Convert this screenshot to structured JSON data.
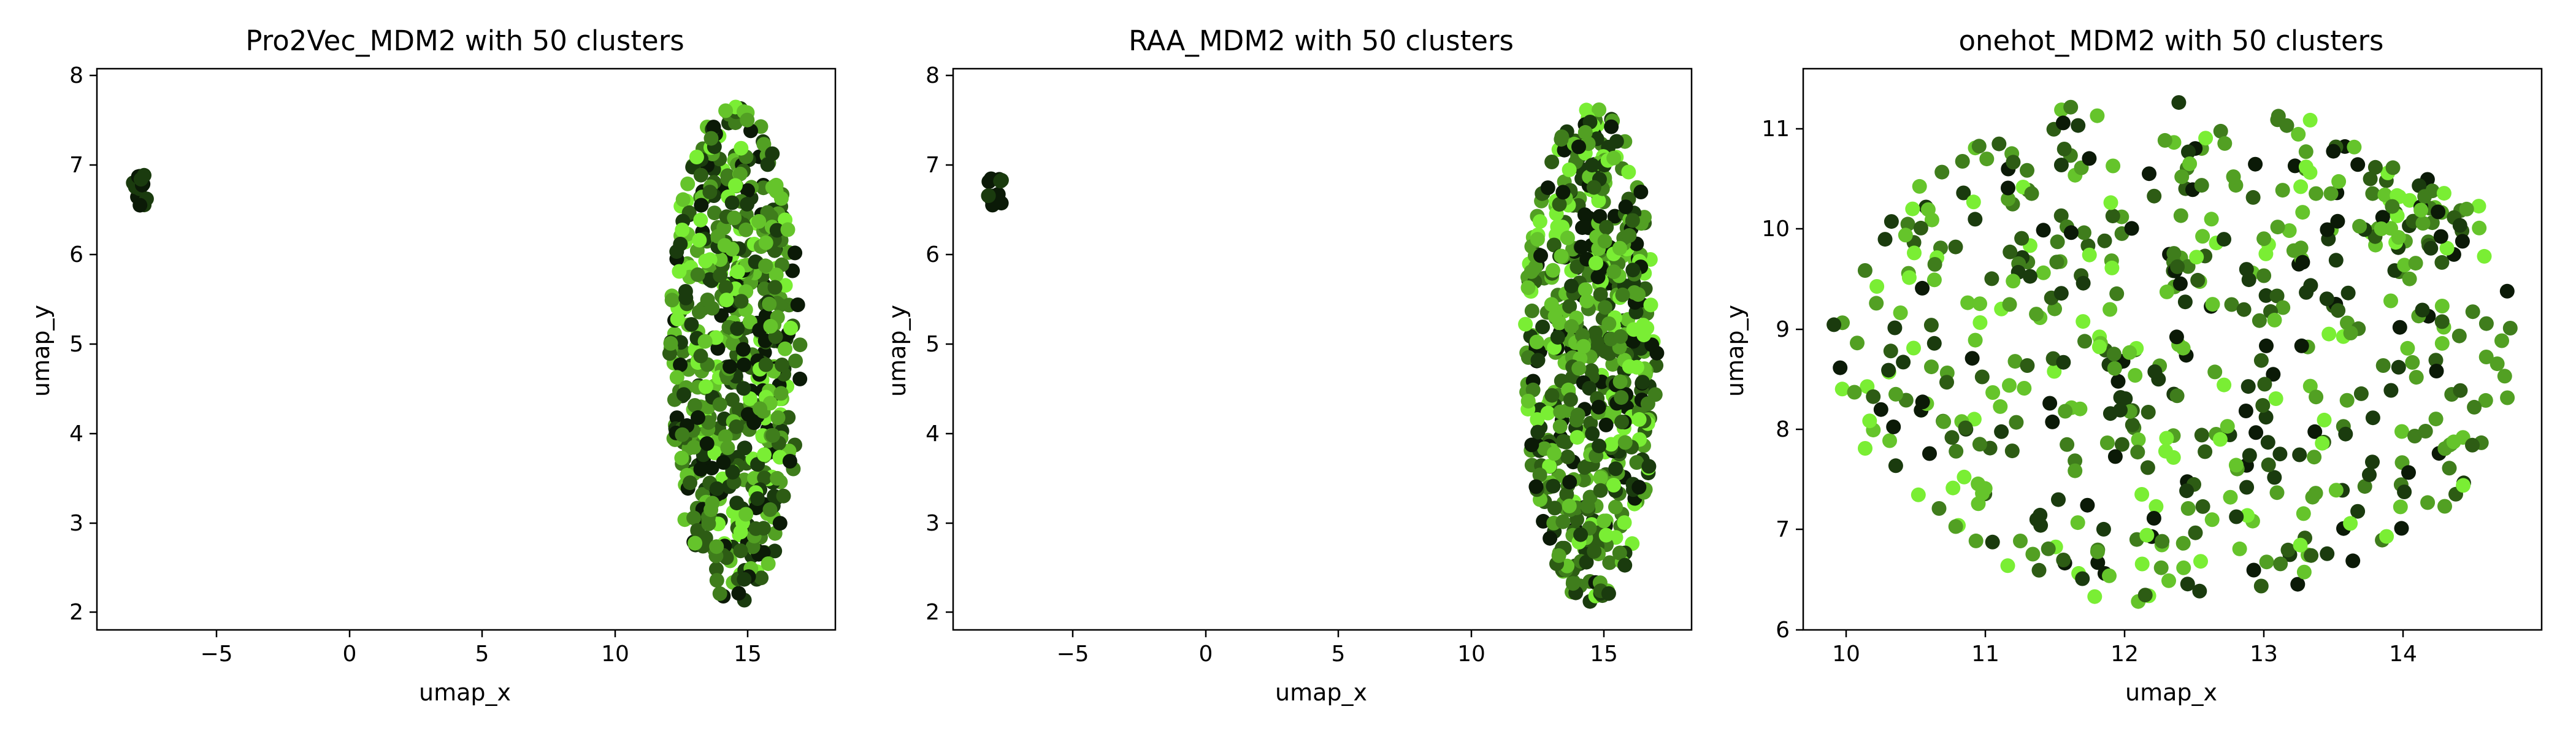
{
  "chart_data": [
    {
      "type": "scatter",
      "title": "Pro2Vec_MDM2 with 50 clusters",
      "xlabel": "umap_x",
      "ylabel": "umap_y",
      "xlim": [
        -9.5,
        18.3
      ],
      "ylim": [
        1.8,
        8.15
      ],
      "xticks": [
        -5,
        0,
        5,
        10,
        15
      ],
      "yticks": [
        2,
        3,
        4,
        5,
        6,
        7,
        8
      ],
      "grid": false,
      "legend": "none",
      "clusters": [
        {
          "x_range": [
            -8.2,
            -7.6
          ],
          "y_range": [
            6.55,
            7.0
          ],
          "count": 14
        },
        {
          "x_range": [
            12.0,
            17.0
          ],
          "y_range": [
            2.1,
            7.75
          ],
          "count": 600
        }
      ],
      "palette": [
        "#0b1a07",
        "#1a3b0e",
        "#2d5c14",
        "#3f7d1c",
        "#52a023",
        "#65c42b",
        "#7aee34"
      ]
    },
    {
      "type": "scatter",
      "title": "RAA_MDM2 with 50 clusters",
      "xlabel": "umap_x",
      "ylabel": "umap_y",
      "xlim": [
        -9.5,
        18.3
      ],
      "ylim": [
        1.8,
        8.15
      ],
      "xticks": [
        -5,
        0,
        5,
        10,
        15
      ],
      "yticks": [
        2,
        3,
        4,
        5,
        6,
        7,
        8
      ],
      "grid": false,
      "legend": "none",
      "clusters": [
        {
          "x_range": [
            -8.2,
            -7.6
          ],
          "y_range": [
            6.55,
            7.0
          ],
          "count": 14
        },
        {
          "x_range": [
            12.0,
            17.0
          ],
          "y_range": [
            2.1,
            7.75
          ],
          "count": 600
        }
      ],
      "palette": [
        "#0b1a07",
        "#1a3b0e",
        "#2d5c14",
        "#3f7d1c",
        "#52a023",
        "#65c42b",
        "#7aee34"
      ]
    },
    {
      "type": "scatter",
      "title": "onehot_MDM2 with 50 clusters",
      "xlabel": "umap_x",
      "ylabel": "umap_y",
      "xlim": [
        9.75,
        14.95
      ],
      "ylim": [
        6.0,
        11.6
      ],
      "xticks": [
        10,
        11,
        12,
        13,
        14
      ],
      "yticks": [
        6,
        7,
        8,
        9,
        10,
        11
      ],
      "grid": false,
      "legend": "none",
      "clusters": [
        {
          "x_range": [
            9.95,
            14.8
          ],
          "y_range": [
            6.25,
            11.35
          ],
          "count": 530
        },
        {
          "x_range": [
            13.65,
            14.55
          ],
          "y_range": [
            9.7,
            10.5
          ],
          "count": 40
        }
      ],
      "palette": [
        "#0b1a07",
        "#1a3b0e",
        "#2d5c14",
        "#3f7d1c",
        "#52a023",
        "#65c42b",
        "#7aee34"
      ]
    }
  ]
}
